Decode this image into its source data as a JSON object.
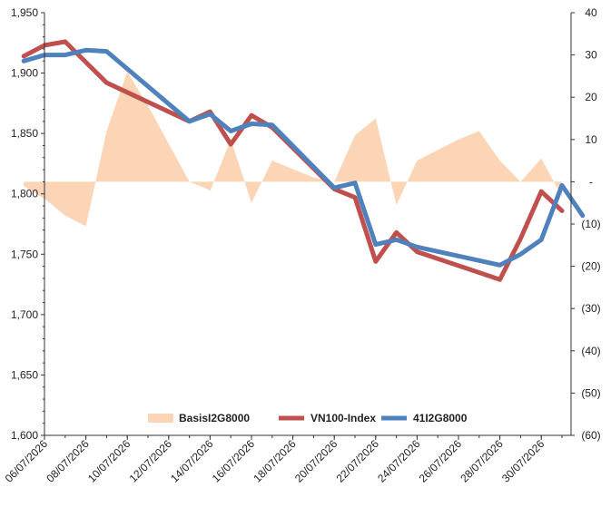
{
  "chart_data": {
    "type": "line",
    "title": "",
    "xlabel": "",
    "ylabel": "",
    "x_dates": [
      "06/07/2026",
      "07/07/2026",
      "08/07/2026",
      "09/07/2026",
      "10/07/2026",
      "13/07/2026",
      "14/07/2026",
      "15/07/2026",
      "16/07/2026",
      "17/07/2026",
      "20/07/2026",
      "21/07/2026",
      "22/07/2026",
      "23/07/2026",
      "24/07/2026",
      "27/07/2026",
      "28/07/2026",
      "29/07/2026",
      "30/07/2026",
      "31/07/2026"
    ],
    "x_tick_labels": [
      "06/07/2026",
      "08/07/2026",
      "10/07/2026",
      "12/07/2026",
      "14/07/2026",
      "16/07/2026",
      "18/07/2026",
      "20/07/2026",
      "22/07/2026",
      "24/07/2026",
      "26/07/2026",
      "28/07/2026",
      "30/07/2026"
    ],
    "y_left": {
      "min": 1600,
      "max": 1950,
      "ticks": [
        "1,600",
        "1,650",
        "1,700",
        "1,750",
        "1,800",
        "1,850",
        "1,900",
        "1,950"
      ],
      "tick_values": [
        1600,
        1650,
        1700,
        1750,
        1800,
        1850,
        1900,
        1950
      ]
    },
    "y_right": {
      "min": -60,
      "max": 40,
      "ticks": [
        "(60)",
        "(50)",
        "(40)",
        "(30)",
        "(20)",
        "(10)",
        "-",
        "10",
        "20",
        "30",
        "40"
      ],
      "tick_values": [
        -60,
        -50,
        -40,
        -30,
        -20,
        -10,
        0,
        10,
        20,
        30,
        40
      ]
    },
    "series": [
      {
        "name": "BasisI2G8000",
        "kind": "area",
        "axis": "right",
        "color": "#fbd5b5",
        "points": [
          {
            "x": "05/07/2026",
            "y": -1
          },
          {
            "x": "06/07/2026",
            "y": -4
          },
          {
            "x": "07/07/2026",
            "y": -8
          },
          {
            "x": "08/07/2026",
            "y": -10.5
          },
          {
            "x": "09/07/2026",
            "y": 12
          },
          {
            "x": "10/07/2026",
            "y": 26
          },
          {
            "x": "11/07/2026",
            "y": 18
          },
          {
            "x": "12/07/2026",
            "y": 9
          },
          {
            "x": "13/07/2026",
            "y": 0
          },
          {
            "x": "14/07/2026",
            "y": -2
          },
          {
            "x": "14/07/2026",
            "y": -2.3
          },
          {
            "x": "15/07/2026",
            "y": 10
          },
          {
            "x": "16/07/2026",
            "y": -5
          },
          {
            "x": "17/07/2026",
            "y": 5
          },
          {
            "x": "18/07/2026",
            "y": 3
          },
          {
            "x": "19/07/2026",
            "y": 1
          },
          {
            "x": "20/07/2026",
            "y": 0
          },
          {
            "x": "21/07/2026",
            "y": 11
          },
          {
            "x": "22/07/2026",
            "y": 15
          },
          {
            "x": "23/07/2026",
            "y": -5.5
          },
          {
            "x": "24/07/2026",
            "y": 5
          },
          {
            "x": "25/07/2026",
            "y": 7.5
          },
          {
            "x": "26/07/2026",
            "y": 10
          },
          {
            "x": "27/07/2026",
            "y": 12
          },
          {
            "x": "28/07/2026",
            "y": 5
          },
          {
            "x": "29/07/2026",
            "y": 0
          },
          {
            "x": "30/07/2026",
            "y": 5.5
          },
          {
            "x": "31/07/2026",
            "y": -3.5
          }
        ]
      },
      {
        "name": "VN100-Index",
        "kind": "line",
        "axis": "left",
        "color": "#c0504d",
        "points": [
          {
            "x": "05/07/2026",
            "y": 1914
          },
          {
            "x": "06/07/2026",
            "y": 1923
          },
          {
            "x": "07/07/2026",
            "y": 1926
          },
          {
            "x": "08/07/2026",
            "y": 1909
          },
          {
            "x": "09/07/2026",
            "y": 1892
          },
          {
            "x": "13/07/2026",
            "y": 1860
          },
          {
            "x": "14/07/2026",
            "y": 1868
          },
          {
            "x": "15/07/2026",
            "y": 1841
          },
          {
            "x": "16/07/2026",
            "y": 1865
          },
          {
            "x": "17/07/2026",
            "y": 1855
          },
          {
            "x": "20/07/2026",
            "y": 1804
          },
          {
            "x": "21/07/2026",
            "y": 1797
          },
          {
            "x": "22/07/2026",
            "y": 1744
          },
          {
            "x": "23/07/2026",
            "y": 1768
          },
          {
            "x": "24/07/2026",
            "y": 1752
          },
          {
            "x": "28/07/2026",
            "y": 1729
          },
          {
            "x": "29/07/2026",
            "y": 1763
          },
          {
            "x": "30/07/2026",
            "y": 1802
          },
          {
            "x": "31/07/2026",
            "y": 1786
          }
        ]
      },
      {
        "name": "41I2G8000",
        "kind": "line",
        "axis": "left",
        "color": "#4f81bd",
        "points": [
          {
            "x": "05/07/2026",
            "y": 1910
          },
          {
            "x": "06/07/2026",
            "y": 1915
          },
          {
            "x": "07/07/2026",
            "y": 1915
          },
          {
            "x": "08/07/2026",
            "y": 1919
          },
          {
            "x": "09/07/2026",
            "y": 1918
          },
          {
            "x": "13/07/2026",
            "y": 1860
          },
          {
            "x": "14/07/2026",
            "y": 1866
          },
          {
            "x": "15/07/2026",
            "y": 1852
          },
          {
            "x": "16/07/2026",
            "y": 1858
          },
          {
            "x": "17/07/2026",
            "y": 1857
          },
          {
            "x": "20/07/2026",
            "y": 1805
          },
          {
            "x": "21/07/2026",
            "y": 1809
          },
          {
            "x": "22/07/2026",
            "y": 1758
          },
          {
            "x": "23/07/2026",
            "y": 1762
          },
          {
            "x": "24/07/2026",
            "y": 1756
          },
          {
            "x": "28/07/2026",
            "y": 1741
          },
          {
            "x": "29/07/2026",
            "y": 1750
          },
          {
            "x": "30/07/2026",
            "y": 1762
          },
          {
            "x": "31/07/2026",
            "y": 1807
          },
          {
            "x": "01/08/2026",
            "y": 1782
          }
        ]
      }
    ],
    "legend": {
      "position": "bottom-center",
      "entries": [
        "BasisI2G8000",
        "VN100-Index",
        "41I2G8000"
      ]
    },
    "grid": false
  }
}
